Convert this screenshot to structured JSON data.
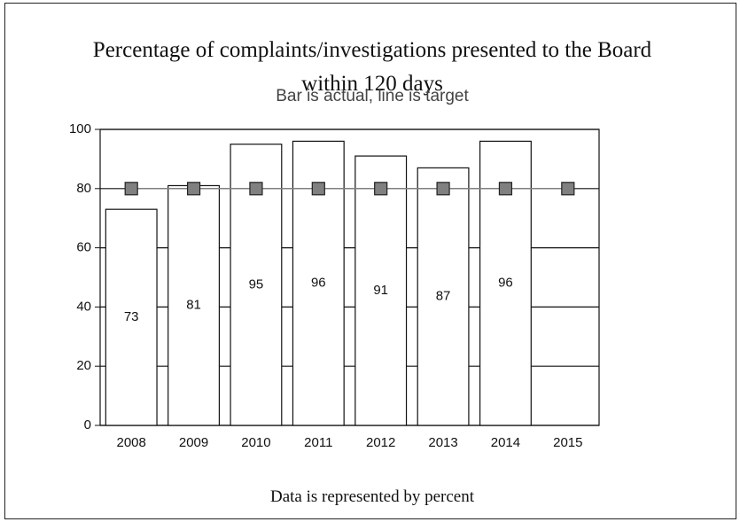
{
  "chart_data": {
    "type": "bar",
    "title": "Percentage of complaints/investigations presented to the Board within 120 days",
    "subtitle": "Bar is actual, line is target",
    "footer": "Data is represented by percent",
    "categories": [
      "2008",
      "2009",
      "2010",
      "2011",
      "2012",
      "2013",
      "2014",
      "2015"
    ],
    "series": [
      {
        "type": "bar",
        "color": "#ffffff",
        "values": [
          73,
          81,
          95,
          96,
          91,
          87,
          96,
          null
        ]
      },
      {
        "type": "line",
        "color": "#808080",
        "values": [
          80,
          80,
          80,
          80,
          80,
          80,
          80,
          80
        ]
      }
    ],
    "ylim": [
      0,
      100
    ],
    "yticks": [
      0,
      20,
      40,
      60,
      80,
      100
    ],
    "grid": true
  }
}
